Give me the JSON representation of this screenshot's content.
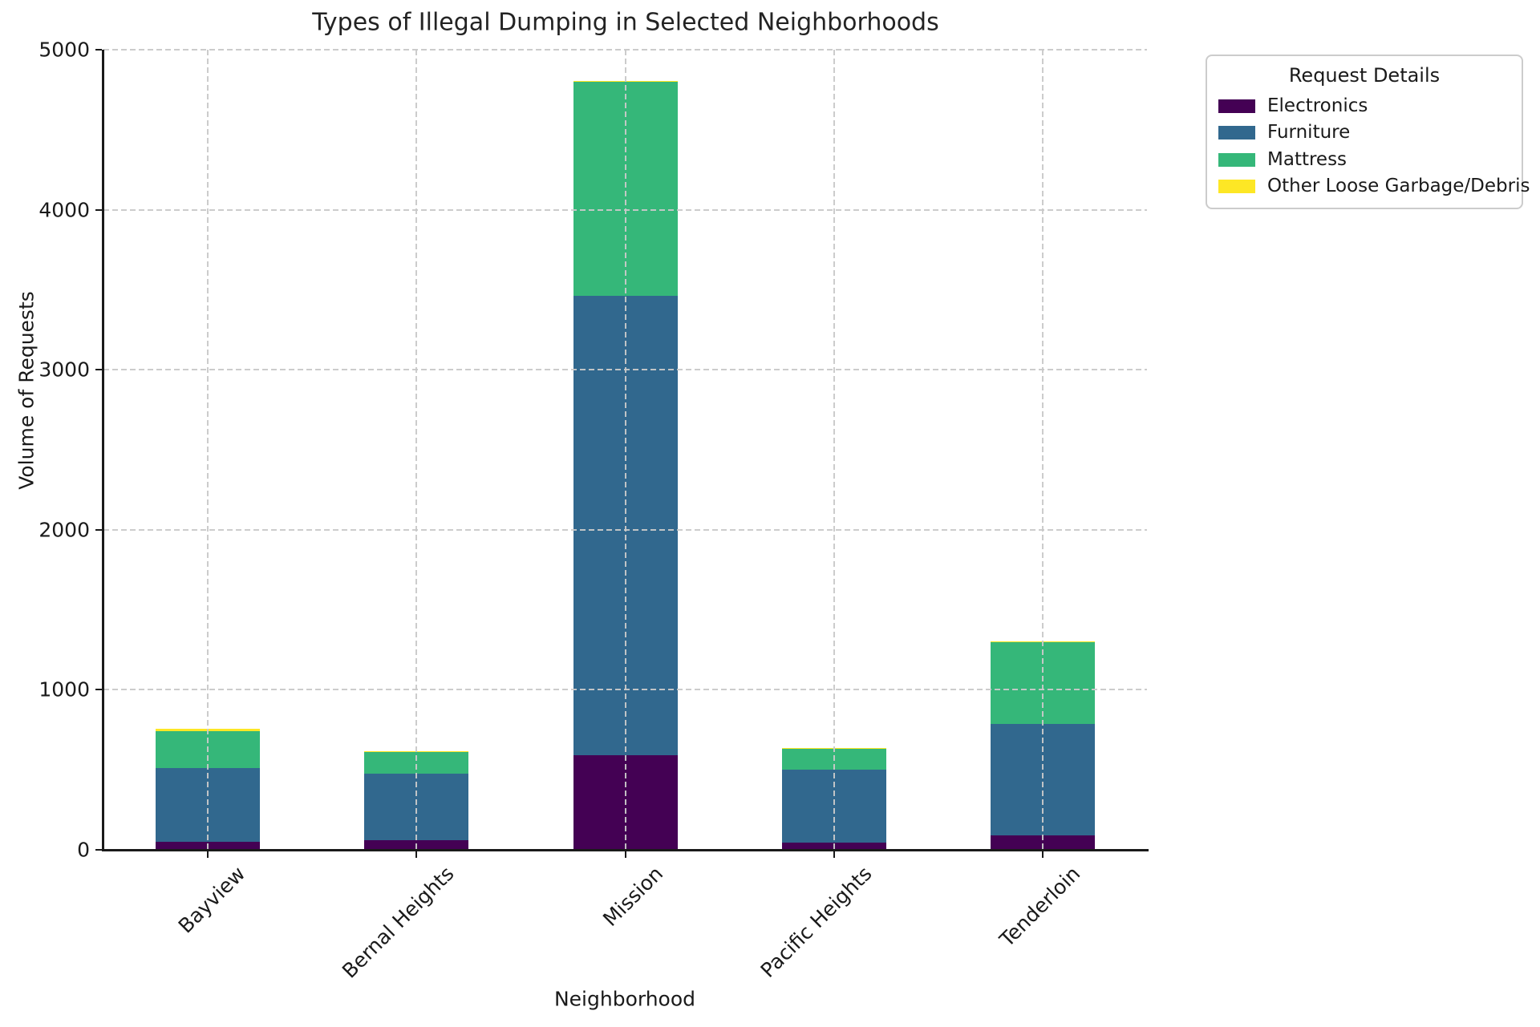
{
  "title": "Types of Illegal Dumping in Selected Neighborhoods",
  "chart_data": {
    "type": "bar",
    "stacked": true,
    "title": "Types of Illegal Dumping in Selected Neighborhoods",
    "xlabel": "Neighborhood",
    "ylabel": "Volume of Requests",
    "categories": [
      "Bayview",
      "Bernal Heights",
      "Mission",
      "Pacific Heights",
      "Tenderloin"
    ],
    "series": [
      {
        "name": "Electronics",
        "color": "#440154",
        "values": [
          50,
          60,
          590,
          45,
          90
        ]
      },
      {
        "name": "Furniture",
        "color": "#31688e",
        "values": [
          460,
          415,
          2870,
          455,
          695
        ]
      },
      {
        "name": "Mattress",
        "color": "#35b779",
        "values": [
          230,
          135,
          1340,
          130,
          515
        ]
      },
      {
        "name": "Other Loose Garbage/Debris",
        "color": "#fde725",
        "values": [
          15,
          5,
          5,
          5,
          5
        ]
      }
    ],
    "totals": [
      755,
      615,
      4805,
      635,
      1305
    ],
    "ylim": [
      0,
      5000
    ],
    "yticks": [
      0,
      1000,
      2000,
      3000,
      4000,
      5000
    ],
    "ytick_labels": [
      "0",
      "1000",
      "2000",
      "3000",
      "4000",
      "5000"
    ],
    "grid": true,
    "grid_style": "dashed, drawn above bars",
    "legend": {
      "title": "Request Details",
      "position": "outside upper right"
    },
    "colors": {
      "grid": "#c9c9c9",
      "spine": "#1a1a1a",
      "text": "#1a1a1a",
      "background": "#ffffff"
    }
  }
}
